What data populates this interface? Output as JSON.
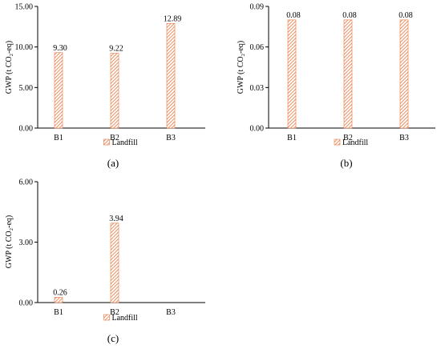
{
  "chart_data": [
    {
      "id": "a",
      "type": "bar",
      "caption": "(a)",
      "categories": [
        "B1",
        "B2",
        "B3"
      ],
      "series": [
        {
          "name": "Landfill",
          "values": [
            9.3,
            9.22,
            12.89
          ]
        }
      ],
      "data_labels": [
        "9.30",
        "9.22",
        "12.89"
      ],
      "ylabel": "GWP (t CO₂-eq)",
      "ylim": [
        0,
        15
      ],
      "yticks": [
        "0.00",
        "5.00",
        "10.00",
        "15.00"
      ],
      "ytick_values": [
        0,
        5,
        10,
        15
      ],
      "grid": false,
      "legend": "bottom-center"
    },
    {
      "id": "b",
      "type": "bar",
      "caption": "(b)",
      "categories": [
        "B1",
        "B2",
        "B3"
      ],
      "series": [
        {
          "name": "Landfill",
          "values": [
            0.08,
            0.08,
            0.08
          ]
        }
      ],
      "data_labels": [
        "0.08",
        "0.08",
        "0.08"
      ],
      "ylabel": "GWP (t CO₂-eq)",
      "ylim": [
        0,
        0.09
      ],
      "yticks": [
        "0.00",
        "0.03",
        "0.06",
        "0.09"
      ],
      "ytick_values": [
        0,
        0.03,
        0.06,
        0.09
      ],
      "grid": false,
      "legend": "bottom-center"
    },
    {
      "id": "c",
      "type": "bar",
      "caption": "(c)",
      "categories": [
        "B1",
        "B2",
        "B3"
      ],
      "series": [
        {
          "name": "Landfill",
          "values": [
            0.26,
            3.94,
            null
          ]
        }
      ],
      "data_labels": [
        "0.26",
        "3.94",
        ""
      ],
      "ylabel": "GWP (t CO₂-eq)",
      "ylim": [
        0,
        6
      ],
      "yticks": [
        "0.00",
        "3.00",
        "6.00"
      ],
      "ytick_values": [
        0,
        3,
        6
      ],
      "grid": false,
      "legend": "bottom-center"
    }
  ],
  "colors": {
    "bar_stripe": "#e8743b",
    "bar_bg": "#ffffff",
    "axis": "#000000"
  }
}
